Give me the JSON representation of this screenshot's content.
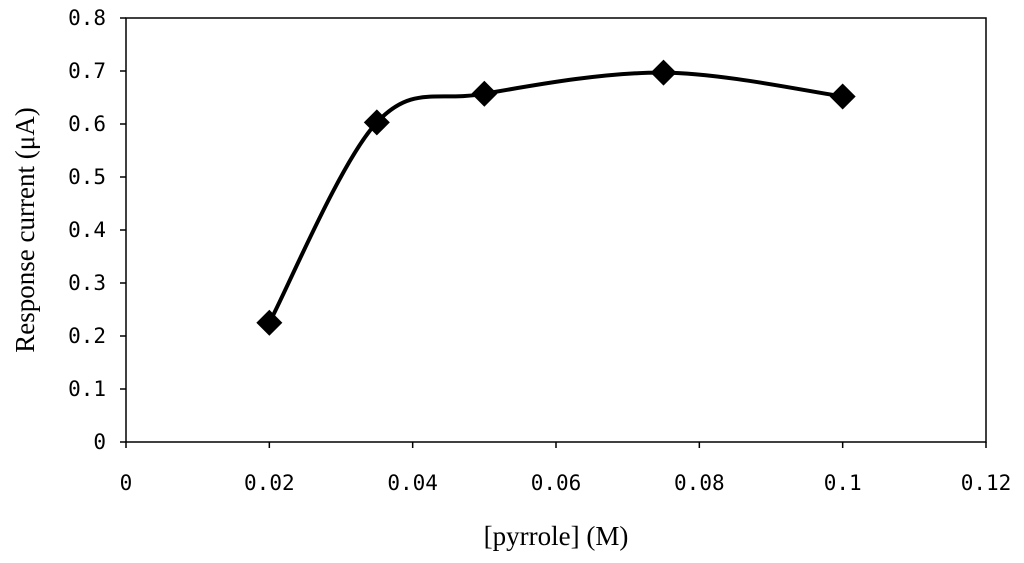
{
  "chart_data": {
    "type": "line",
    "title": "",
    "xlabel": "[pyrrole] (M)",
    "ylabel": "Response current (μA)",
    "xlim": [
      0,
      0.12
    ],
    "ylim": [
      0,
      0.8
    ],
    "x_ticks": [
      "0",
      "0.02",
      "0.04",
      "0.06",
      "0.08",
      "0.1",
      "0.12"
    ],
    "y_ticks": [
      "0",
      "0.1",
      "0.2",
      "0.3",
      "0.4",
      "0.5",
      "0.6",
      "0.7",
      "0.8"
    ],
    "grid": false,
    "legend": "none",
    "smoothed": true,
    "marker": "diamond",
    "series": [
      {
        "x": [
          0.02,
          0.035,
          0.05,
          0.075,
          0.1
        ],
        "y": [
          0.225,
          0.603,
          0.657,
          0.697,
          0.652
        ],
        "color": "#000000"
      }
    ]
  }
}
